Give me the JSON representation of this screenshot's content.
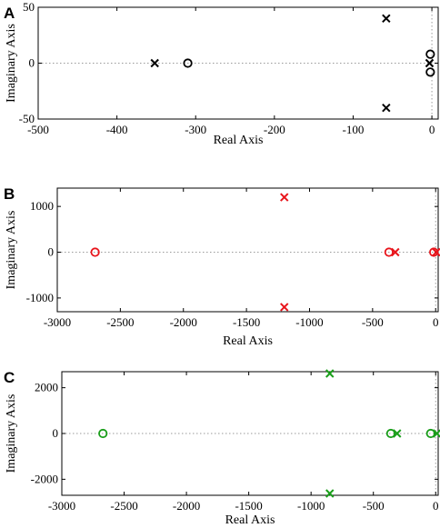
{
  "chart_data": [
    {
      "type": "scatter",
      "panel_label": "A",
      "xlabel": "Real Axis",
      "ylabel": "Imaginary Axis",
      "xlim": [
        -500,
        8
      ],
      "ylim": [
        -50,
        50
      ],
      "xticks": [
        -500,
        -400,
        -300,
        -200,
        -100,
        0
      ],
      "yticks": [
        -50,
        0,
        50
      ],
      "color": "#000000",
      "poles": [
        {
          "x": -352,
          "y": 0
        },
        {
          "x": -58,
          "y": 40
        },
        {
          "x": -58,
          "y": -40
        },
        {
          "x": -3,
          "y": 0
        }
      ],
      "zeros": [
        {
          "x": -310,
          "y": 0
        },
        {
          "x": -2,
          "y": 8
        },
        {
          "x": -2,
          "y": -8
        }
      ]
    },
    {
      "type": "scatter",
      "panel_label": "B",
      "xlabel": "Real Axis",
      "ylabel": "Imaginary Axis",
      "xlim": [
        -3000,
        20
      ],
      "ylim": [
        -1300,
        1400
      ],
      "xticks": [
        -3000,
        -2500,
        -2000,
        -1500,
        -1000,
        -500,
        0
      ],
      "yticks": [
        -1000,
        0,
        1000
      ],
      "color": "#e8141b",
      "poles": [
        {
          "x": -1200,
          "y": 1200
        },
        {
          "x": -1200,
          "y": -1200
        },
        {
          "x": -320,
          "y": 0
        },
        {
          "x": 5,
          "y": 0
        }
      ],
      "zeros": [
        {
          "x": -2700,
          "y": 0
        },
        {
          "x": -370,
          "y": 0
        },
        {
          "x": -15,
          "y": 0
        }
      ]
    },
    {
      "type": "scatter",
      "panel_label": "C",
      "xlabel": "Real Axis",
      "ylabel": "Imaginary Axis",
      "xlim": [
        -3000,
        20
      ],
      "ylim": [
        -2700,
        2700
      ],
      "xticks": [
        -3000,
        -2500,
        -2000,
        -1500,
        -1000,
        -500,
        0
      ],
      "yticks": [
        -2000,
        0,
        2000
      ],
      "color": "#1a9e1a",
      "poles": [
        {
          "x": -850,
          "y": 2620
        },
        {
          "x": -850,
          "y": -2620
        },
        {
          "x": -310,
          "y": 0
        },
        {
          "x": 10,
          "y": 0
        }
      ],
      "zeros": [
        {
          "x": -2670,
          "y": 0
        },
        {
          "x": -360,
          "y": 0
        },
        {
          "x": -40,
          "y": 0
        }
      ]
    }
  ]
}
